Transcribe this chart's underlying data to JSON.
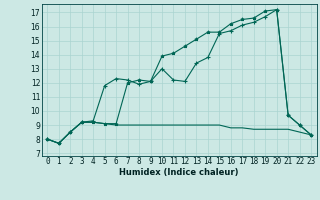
{
  "xlabel": "Humidex (Indice chaleur)",
  "background_color": "#cce8e4",
  "grid_color": "#aad4d0",
  "line_color": "#006655",
  "xlim": [
    -0.5,
    23.5
  ],
  "ylim": [
    6.8,
    17.6
  ],
  "yticks": [
    7,
    8,
    9,
    10,
    11,
    12,
    13,
    14,
    15,
    16,
    17
  ],
  "xticks": [
    0,
    1,
    2,
    3,
    4,
    5,
    6,
    7,
    8,
    9,
    10,
    11,
    12,
    13,
    14,
    15,
    16,
    17,
    18,
    19,
    20,
    21,
    22,
    23
  ],
  "series1_x": [
    0,
    1,
    2,
    3,
    4,
    5,
    6,
    7,
    8,
    9,
    10,
    11,
    12,
    13,
    14,
    15,
    16,
    17,
    18,
    19,
    20,
    21,
    22,
    23
  ],
  "series1_y": [
    8.0,
    7.7,
    8.5,
    9.2,
    9.3,
    11.8,
    12.3,
    12.2,
    11.9,
    12.1,
    13.0,
    12.2,
    12.1,
    13.4,
    13.8,
    15.5,
    15.7,
    16.1,
    16.3,
    16.7,
    17.2,
    9.7,
    9.0,
    8.3
  ],
  "series2_x": [
    0,
    1,
    2,
    3,
    4,
    5,
    6,
    7,
    8,
    9,
    10,
    11,
    12,
    13,
    14,
    15,
    16,
    17,
    18,
    19,
    20,
    21,
    22,
    23
  ],
  "series2_y": [
    8.0,
    7.7,
    8.5,
    9.2,
    9.2,
    9.1,
    9.1,
    12.0,
    12.2,
    12.1,
    13.9,
    14.1,
    14.6,
    15.1,
    15.6,
    15.6,
    16.2,
    16.5,
    16.6,
    17.1,
    17.2,
    9.7,
    9.0,
    8.3
  ],
  "series3_x": [
    0,
    1,
    2,
    3,
    4,
    5,
    6,
    7,
    8,
    9,
    10,
    11,
    12,
    13,
    14,
    15,
    16,
    17,
    18,
    19,
    20,
    21,
    22,
    23
  ],
  "series3_y": [
    8.0,
    7.7,
    8.5,
    9.2,
    9.2,
    9.1,
    9.0,
    9.0,
    9.0,
    9.0,
    9.0,
    9.0,
    9.0,
    9.0,
    9.0,
    9.0,
    8.8,
    8.8,
    8.7,
    8.7,
    8.7,
    8.7,
    8.5,
    8.3
  ],
  "xlabel_fontsize": 6.0,
  "tick_fontsize": 5.5,
  "linewidth": 0.8,
  "marker_size": 3.0
}
